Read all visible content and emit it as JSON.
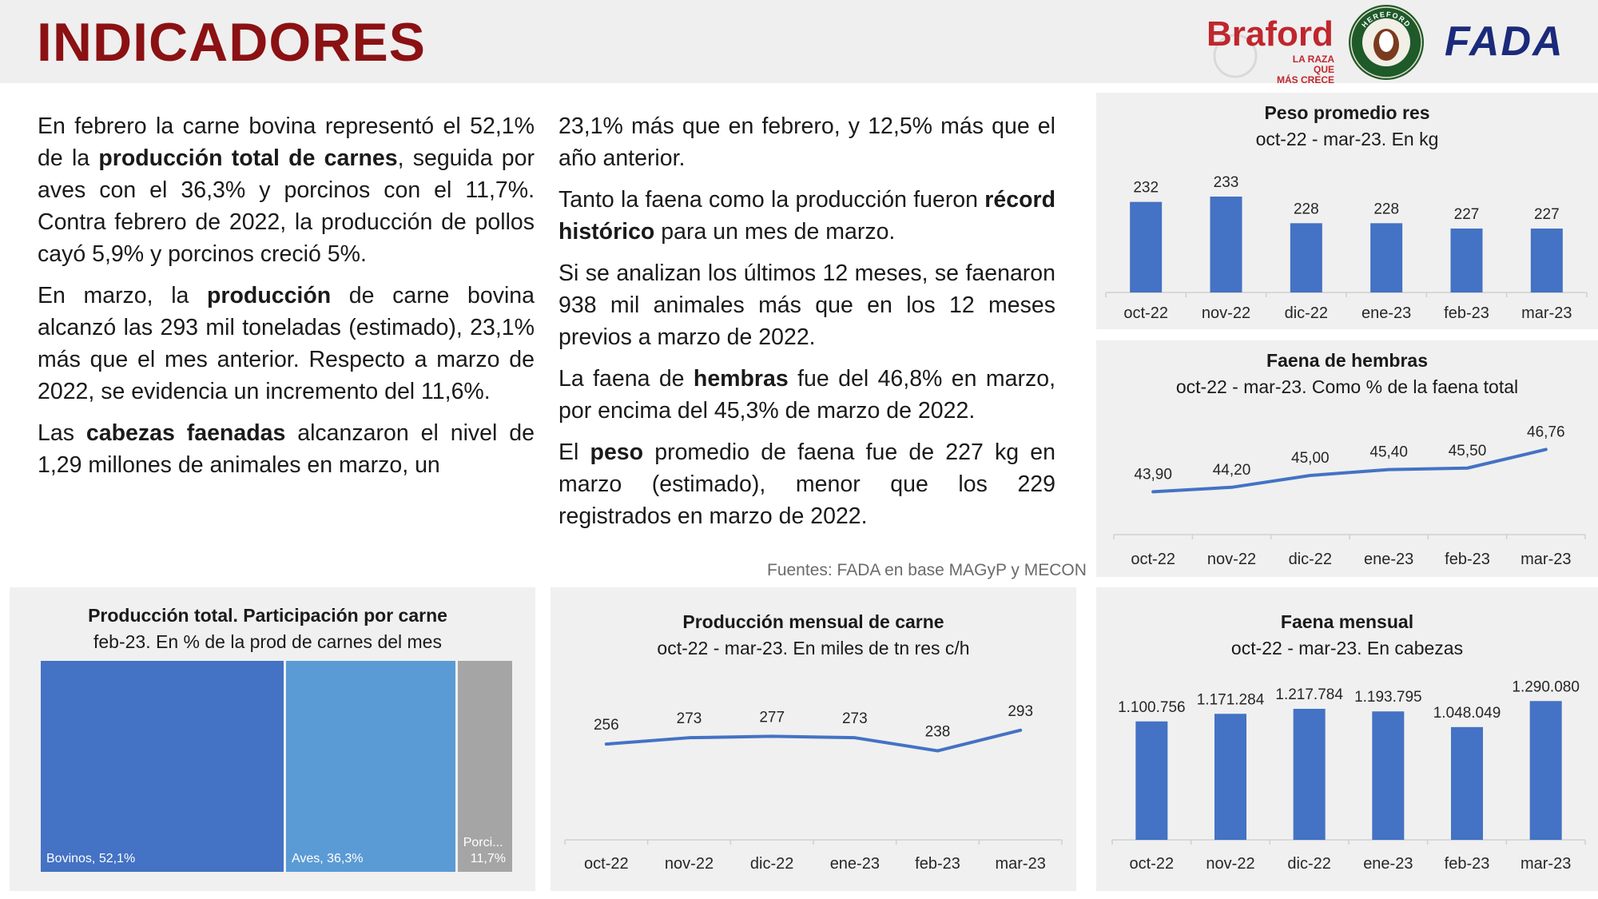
{
  "header": {
    "title": "INDICADORES",
    "logos": {
      "braford": {
        "name": "Braford",
        "tagline_1": "LA RAZA QUE",
        "tagline_2": "MÁS CRECE"
      },
      "hereford": {
        "name": "HEREFORD"
      },
      "fada": {
        "name": "FADA"
      }
    }
  },
  "text": {
    "col1": {
      "p1": {
        "pre": "En febrero la carne bovina representó el 52,1% de la ",
        "bold": "producción total de carnes",
        "post": ", seguida por aves con el 36,3% y porcinos con el 11,7%. Contra febrero de 2022, la producción de pollos cayó 5,9% y porcinos creció 5%."
      },
      "p2": {
        "pre": "En marzo, la ",
        "bold": "producción",
        "post": " de carne bovina alcanzó las 293 mil toneladas (estimado), 23,1% más que el mes anterior. Respecto a marzo de 2022, se evidencia un incremento del 11,6%."
      },
      "p3": {
        "pre": "Las ",
        "bold": "cabezas faenadas",
        "post": " alcanzaron el nivel de 1,29 millones de animales en marzo, un"
      }
    },
    "col2": {
      "p1": {
        "pre": "23,1% más que en febrero, y 12,5% más que el año anterior.",
        "bold": "",
        "post": ""
      },
      "p2": {
        "pre": "Tanto la faena como la producción fueron ",
        "bold": "récord histórico",
        "post": " para un mes de marzo."
      },
      "p3": {
        "pre": "Si se analizan los últimos 12 meses, se faenaron 938 mil animales más que en los 12 meses previos a marzo de 2022.",
        "bold": "",
        "post": ""
      },
      "p4": {
        "pre": "La faena de ",
        "bold": "hembras",
        "post": " fue del 46,8% en marzo, por encima del 45,3% de marzo de 2022."
      },
      "p5": {
        "pre": "El ",
        "bold": "peso",
        "post": " promedio de faena fue de 227 kg en marzo (estimado), menor que los 229 registrados en marzo de 2022."
      }
    },
    "fuentes": "Fuentes: FADA en base MAGyP y MECON"
  },
  "chart_data": [
    {
      "id": "peso",
      "type": "bar",
      "title": "Peso promedio res",
      "subtitle": "oct-22 - mar-23. En kg",
      "categories": [
        "oct-22",
        "nov-22",
        "dic-22",
        "ene-23",
        "feb-23",
        "mar-23"
      ],
      "values": [
        232,
        233,
        228,
        228,
        227,
        227
      ],
      "labels": [
        "232",
        "233",
        "228",
        "228",
        "227",
        "227"
      ],
      "ylim": [
        215,
        236
      ],
      "color": "#4472c4"
    },
    {
      "id": "hembras",
      "type": "line",
      "title": "Faena de hembras",
      "subtitle": "oct-22 - mar-23. Como % de la faena total",
      "categories": [
        "oct-22",
        "nov-22",
        "dic-22",
        "ene-23",
        "feb-23",
        "mar-23"
      ],
      "values": [
        43.9,
        44.2,
        45.0,
        45.4,
        45.5,
        46.76
      ],
      "labels": [
        "43,90",
        "44,20",
        "45,00",
        "45,40",
        "45,50",
        "46,76"
      ],
      "ylim": [
        41.0,
        49.0
      ],
      "color": "#4472c4"
    },
    {
      "id": "participacion",
      "type": "treemap",
      "title": "Producción total. Participación por carne",
      "subtitle": "feb-23. En % de la prod de carnes del mes",
      "items": [
        {
          "label": "Bovinos, 52,1%",
          "value": 52.1,
          "color": "#4472c4"
        },
        {
          "label": "Aves, 36,3%",
          "value": 36.3,
          "color": "#5b9bd5"
        },
        {
          "label": "Porci...",
          "label2": "11,7%",
          "value": 11.7,
          "color": "#a5a5a5"
        }
      ]
    },
    {
      "id": "produccion",
      "type": "line",
      "title": "Producción mensual de carne",
      "subtitle": "oct-22 - mar-23. En miles de tn res c/h",
      "categories": [
        "oct-22",
        "nov-22",
        "dic-22",
        "ene-23",
        "feb-23",
        "mar-23"
      ],
      "values": [
        256,
        273,
        277,
        273,
        238,
        293
      ],
      "labels": [
        "256",
        "273",
        "277",
        "273",
        "238",
        "293"
      ],
      "ylim": [
        0,
        440
      ],
      "color": "#4472c4"
    },
    {
      "id": "faena",
      "type": "bar",
      "title": "Faena mensual",
      "subtitle": "oct-22 - mar-23. En cabezas",
      "categories": [
        "oct-22",
        "nov-22",
        "dic-22",
        "ene-23",
        "feb-23",
        "mar-23"
      ],
      "values": [
        1100756,
        1171284,
        1217784,
        1193795,
        1048049,
        1290080
      ],
      "labels": [
        "1.100.756",
        "1.171.284",
        "1.217.784",
        "1.193.795",
        "1.048.049",
        "1.290.080"
      ],
      "ylim": [
        0,
        1500000
      ],
      "color": "#4472c4"
    }
  ]
}
